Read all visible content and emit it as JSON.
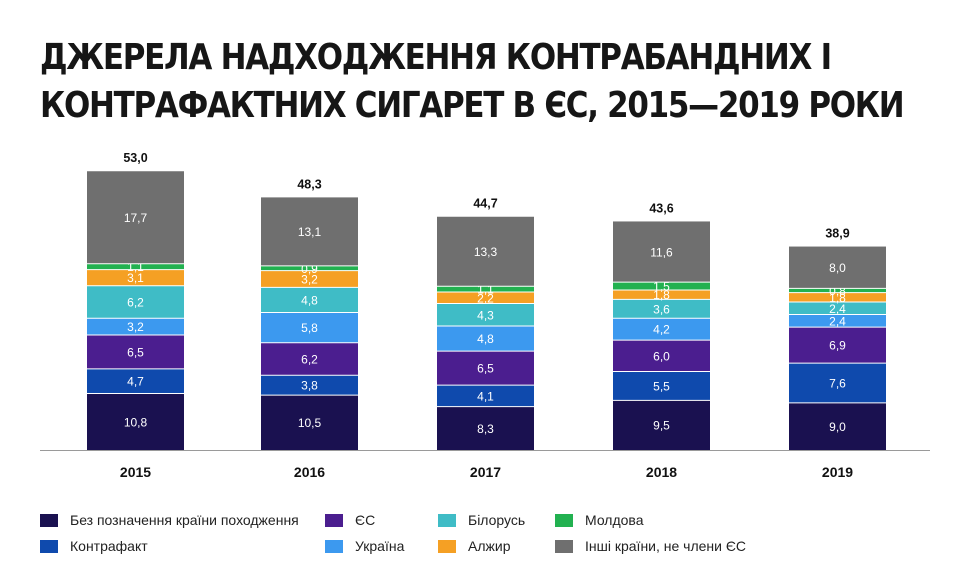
{
  "title_lines": [
    "ДЖЕРЕЛА НАДХОДЖЕННЯ КОНТРАБАНДНИХ І",
    "КОНТРАФАКТНИХ СИГАРЕТ В ЄС, 2015—2019 РОКИ"
  ],
  "chart_data": {
    "type": "bar",
    "stacked": true,
    "categories": [
      "2015",
      "2016",
      "2017",
      "2018",
      "2019"
    ],
    "totals": [
      "53,0",
      "48,3",
      "44,7",
      "43,6",
      "38,9"
    ],
    "series": [
      {
        "name": "Без позначення країни походження",
        "color": "#1a1150",
        "values": [
          10.8,
          10.5,
          8.3,
          9.5,
          9.0
        ]
      },
      {
        "name": "Контрафакт",
        "color": "#0f4aad",
        "values": [
          4.7,
          3.8,
          4.1,
          5.5,
          7.6
        ]
      },
      {
        "name": "ЄС",
        "color": "#4b1e8f",
        "values": [
          6.5,
          6.2,
          6.5,
          6.0,
          6.9
        ]
      },
      {
        "name": "Україна",
        "color": "#3c99ef",
        "values": [
          3.2,
          5.8,
          4.8,
          4.2,
          2.4
        ]
      },
      {
        "name": "Білорусь",
        "color": "#3fbcc6",
        "values": [
          6.2,
          4.8,
          4.3,
          3.6,
          2.4
        ]
      },
      {
        "name": "Алжир",
        "color": "#f5a024",
        "values": [
          3.1,
          3.2,
          2.2,
          1.8,
          1.8
        ]
      },
      {
        "name": "Молдова",
        "color": "#22b150",
        "values": [
          1.1,
          0.9,
          1.1,
          1.5,
          0.8
        ]
      },
      {
        "name": "Інші країни, не члени ЄС",
        "color": "#6f6f6f",
        "values": [
          17.7,
          13.1,
          13.3,
          11.6,
          8.0
        ]
      }
    ],
    "legend_position": "bottom",
    "grid": false
  }
}
